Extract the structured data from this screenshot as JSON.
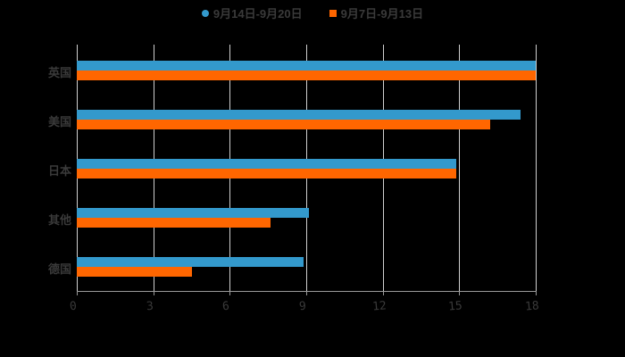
{
  "chart_data": {
    "type": "bar",
    "orientation": "horizontal",
    "title": "",
    "xlabel": "",
    "ylabel": "",
    "xlim": [
      0,
      18
    ],
    "x_ticks": [
      "0",
      "3",
      "6",
      "9",
      "12",
      "15",
      "18"
    ],
    "grid": true,
    "legend_position": "top",
    "categories": [
      "英国",
      "美国",
      "日本",
      "其他",
      "德国"
    ],
    "series": [
      {
        "name": "9月14日-9月20日",
        "color": "#3399cc",
        "values": [
          18,
          17.4,
          14.9,
          9.1,
          8.9
        ]
      },
      {
        "name": "9月7日-9月13日",
        "color": "#ff6600",
        "values": [
          18,
          16.2,
          14.9,
          7.6,
          4.5
        ]
      }
    ]
  },
  "legend": {
    "items": [
      {
        "label": "9月14日-9月20日",
        "color": "#3399cc",
        "marker": "circle"
      },
      {
        "label": "9月7日-9月13日",
        "color": "#ff6600",
        "marker": "square"
      }
    ]
  }
}
